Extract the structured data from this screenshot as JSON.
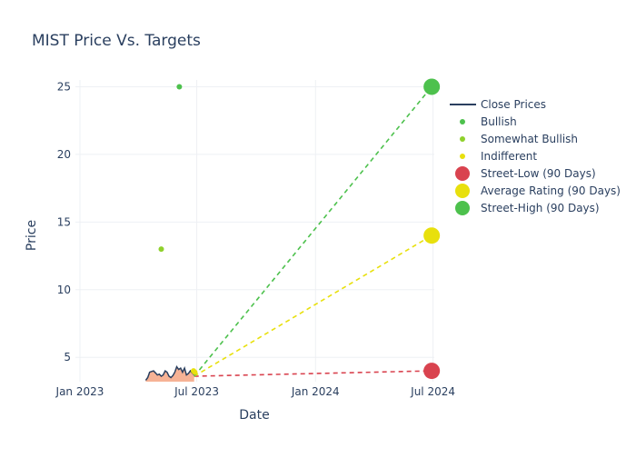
{
  "chart_data": {
    "type": "line",
    "title": "MIST Price Vs. Targets",
    "xlabel": "Date",
    "ylabel": "Price",
    "xlim": [
      "2022-12-25",
      "2024-07-03"
    ],
    "ylim": [
      3.2,
      25.5
    ],
    "x_ticks": [
      {
        "date": "2023-01-01",
        "label": "Jan 2023"
      },
      {
        "date": "2023-07-01",
        "label": "Jul 2023"
      },
      {
        "date": "2024-01-01",
        "label": "Jan 2024"
      },
      {
        "date": "2024-07-01",
        "label": "Jul 2024"
      }
    ],
    "y_ticks": [
      5,
      10,
      15,
      20,
      25
    ],
    "grid": true,
    "legend_position": "right",
    "series": [
      {
        "name": "Close Prices",
        "kind": "line",
        "color": "#2a3f5f",
        "fill_color": "#f4a582",
        "points": [
          [
            "2023-04-13",
            3.3
          ],
          [
            "2023-04-16",
            3.5
          ],
          [
            "2023-04-19",
            3.9
          ],
          [
            "2023-04-22",
            3.95
          ],
          [
            "2023-04-25",
            4.0
          ],
          [
            "2023-04-28",
            3.85
          ],
          [
            "2023-05-01",
            3.7
          ],
          [
            "2023-05-04",
            3.75
          ],
          [
            "2023-05-07",
            3.6
          ],
          [
            "2023-05-10",
            3.7
          ],
          [
            "2023-05-13",
            4.0
          ],
          [
            "2023-05-16",
            3.9
          ],
          [
            "2023-05-19",
            3.6
          ],
          [
            "2023-05-22",
            3.5
          ],
          [
            "2023-05-25",
            3.65
          ],
          [
            "2023-05-28",
            3.9
          ],
          [
            "2023-05-31",
            4.3
          ],
          [
            "2023-06-03",
            4.1
          ],
          [
            "2023-06-06",
            4.2
          ],
          [
            "2023-06-09",
            3.9
          ],
          [
            "2023-06-12",
            4.2
          ],
          [
            "2023-06-15",
            3.7
          ],
          [
            "2023-06-18",
            3.8
          ],
          [
            "2023-06-21",
            4.0
          ],
          [
            "2023-06-24",
            3.85
          ],
          [
            "2023-06-27",
            3.7
          ]
        ]
      },
      {
        "name": "Bullish",
        "kind": "markers",
        "color": "#4dc14d",
        "points": [
          [
            "2023-06-04",
            25
          ]
        ]
      },
      {
        "name": "Somewhat Bullish",
        "kind": "markers",
        "color": "#8fd12c",
        "points": [
          [
            "2023-05-07",
            13
          ]
        ]
      },
      {
        "name": "Indifferent",
        "kind": "markers",
        "color": "#e8e00d",
        "points": [
          [
            "2023-06-26",
            4.0
          ],
          [
            "2023-06-28",
            3.9
          ]
        ]
      },
      {
        "name": "Street-Low (90 Days)",
        "kind": "target",
        "color": "#d9434f",
        "from": [
          "2023-06-27",
          3.6
        ],
        "to": [
          "2024-06-29",
          4
        ]
      },
      {
        "name": "Average Rating (90 Days)",
        "kind": "target",
        "color": "#e8e00d",
        "from": [
          "2023-06-27",
          3.6
        ],
        "to": [
          "2024-06-29",
          14
        ]
      },
      {
        "name": "Street-High (90 Days)",
        "kind": "target",
        "color": "#4dc14d",
        "from": [
          "2023-06-27",
          3.6
        ],
        "to": [
          "2024-06-29",
          25
        ]
      }
    ]
  }
}
